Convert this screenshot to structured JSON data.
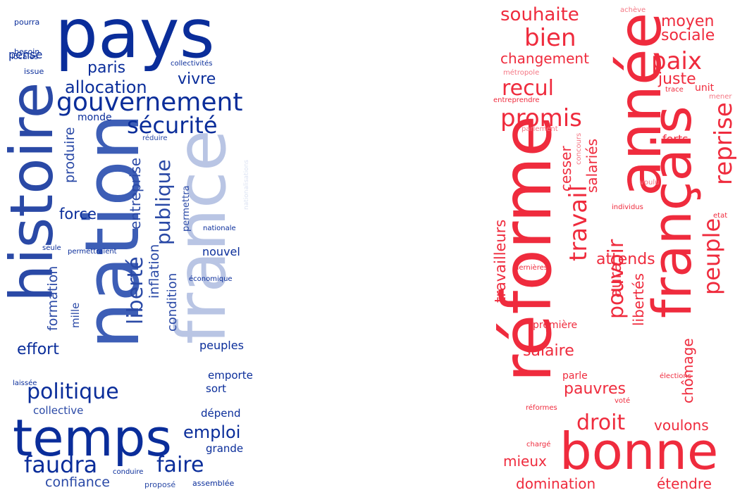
{
  "clouds": [
    {
      "words": [
        {
          "text": "pays",
          "color": "#0a2d9a"
        },
        {
          "text": "histoire",
          "color": "#2a49a6"
        },
        {
          "text": "nation",
          "color": "#3d5eb6"
        },
        {
          "text": "france",
          "color": "#b9c5e4"
        },
        {
          "text": "temps",
          "color": "#0a2d9a"
        },
        {
          "text": "gouvernement",
          "color": "#0a2d9a"
        },
        {
          "text": "sécurité",
          "color": "#0a2d9a"
        },
        {
          "text": "politique",
          "color": "#0a2d9a"
        },
        {
          "text": "faudra",
          "color": "#0a2d9a"
        },
        {
          "text": "faire",
          "color": "#0a2d9a"
        },
        {
          "text": "publique",
          "color": "#2a49a6"
        },
        {
          "text": "liberté",
          "color": "#2a49a6"
        },
        {
          "text": "allocation",
          "color": "#0a2d9a"
        },
        {
          "text": "paris",
          "color": "#0a2d9a"
        },
        {
          "text": "vivre",
          "color": "#0a2d9a"
        },
        {
          "text": "emploi",
          "color": "#0a2d9a"
        },
        {
          "text": "confiance",
          "color": "#2a49a6"
        },
        {
          "text": "effort",
          "color": "#0a2d9a"
        },
        {
          "text": "force",
          "color": "#0a2d9a"
        },
        {
          "text": "entreprise",
          "color": "#2a49a6"
        },
        {
          "text": "produire",
          "color": "#2a49a6"
        },
        {
          "text": "formation",
          "color": "#2a49a6"
        },
        {
          "text": "inflation",
          "color": "#2a49a6"
        },
        {
          "text": "condition",
          "color": "#2a49a6"
        },
        {
          "text": "pense",
          "color": "#0a2d9a"
        },
        {
          "text": "monde",
          "color": "#0a2d9a"
        },
        {
          "text": "nouvel",
          "color": "#0a2d9a"
        },
        {
          "text": "peuples",
          "color": "#0a2d9a"
        },
        {
          "text": "emporte",
          "color": "#0a2d9a"
        },
        {
          "text": "sort",
          "color": "#0a2d9a"
        },
        {
          "text": "dépend",
          "color": "#0a2d9a"
        },
        {
          "text": "grande",
          "color": "#0a2d9a"
        },
        {
          "text": "collective",
          "color": "#2a49a6"
        },
        {
          "text": "mille",
          "color": "#2a49a6"
        },
        {
          "text": "permettra",
          "color": "#2a49a6"
        },
        {
          "text": "pourra",
          "color": "#0a2d9a"
        },
        {
          "text": "besoin",
          "color": "#0a2d9a"
        },
        {
          "text": "locales",
          "color": "#0a2d9a"
        },
        {
          "text": "issue",
          "color": "#0a2d9a"
        },
        {
          "text": "collectivités",
          "color": "#0a2d9a"
        },
        {
          "text": "réduire",
          "color": "#2a49a6"
        },
        {
          "text": "nationale",
          "color": "#0a2d9a"
        },
        {
          "text": "nationalisations",
          "color": "#dbe2f2"
        },
        {
          "text": "seule",
          "color": "#0a2d9a"
        },
        {
          "text": "permettraient",
          "color": "#0a2d9a"
        },
        {
          "text": "économique",
          "color": "#0a2d9a"
        },
        {
          "text": "laissée",
          "color": "#0a2d9a"
        },
        {
          "text": "conduire",
          "color": "#0a2d9a"
        },
        {
          "text": "proposé",
          "color": "#2a49a6"
        },
        {
          "text": "assemblée",
          "color": "#0a2d9a"
        }
      ]
    },
    {
      "words": [
        {
          "text": "année",
          "color": "#ef2b3d"
        },
        {
          "text": "réforme",
          "color": "#ef2b3d"
        },
        {
          "text": "français",
          "color": "#ef2b3d"
        },
        {
          "text": "bonne",
          "color": "#ef2b3d"
        },
        {
          "text": "souhaite",
          "color": "#ef2b3d"
        },
        {
          "text": "bien",
          "color": "#ef2b3d"
        },
        {
          "text": "changement",
          "color": "#ef2b3d"
        },
        {
          "text": "moyen",
          "color": "#ef2b3d"
        },
        {
          "text": "sociale",
          "color": "#ef2b3d"
        },
        {
          "text": "paix",
          "color": "#ef2b3d"
        },
        {
          "text": "juste",
          "color": "#ef2b3d"
        },
        {
          "text": "recul",
          "color": "#ef2b3d"
        },
        {
          "text": "promis",
          "color": "#ef2b3d"
        },
        {
          "text": "reprise",
          "color": "#ef2b3d"
        },
        {
          "text": "peuple",
          "color": "#ef2b3d"
        },
        {
          "text": "forts",
          "color": "#ef2b3d"
        },
        {
          "text": "cesser",
          "color": "#ef2b3d"
        },
        {
          "text": "salariés",
          "color": "#ef2b3d"
        },
        {
          "text": "travail",
          "color": "#ef2b3d"
        },
        {
          "text": "travailleurs",
          "color": "#ef2b3d"
        },
        {
          "text": "pouvoir",
          "color": "#ef2b3d"
        },
        {
          "text": "aura",
          "color": "#ef2b3d"
        },
        {
          "text": "attends",
          "color": "#ef2b3d"
        },
        {
          "text": "libertés",
          "color": "#ef2b3d"
        },
        {
          "text": "chômage",
          "color": "#ef2b3d"
        },
        {
          "text": "salaire",
          "color": "#ef2b3d"
        },
        {
          "text": "pauvres",
          "color": "#ef2b3d"
        },
        {
          "text": "droit",
          "color": "#ef2b3d"
        },
        {
          "text": "voulons",
          "color": "#ef2b3d"
        },
        {
          "text": "mieux",
          "color": "#ef2b3d"
        },
        {
          "text": "domination",
          "color": "#ef2b3d"
        },
        {
          "text": "étendre",
          "color": "#ef2b3d"
        },
        {
          "text": "première",
          "color": "#ef2b3d"
        },
        {
          "text": "parle",
          "color": "#ef2b3d"
        },
        {
          "text": "achève",
          "color": "#f47784"
        },
        {
          "text": "métropole",
          "color": "#f47784"
        },
        {
          "text": "trace",
          "color": "#ef2b3d"
        },
        {
          "text": "unit",
          "color": "#ef2b3d"
        },
        {
          "text": "mener",
          "color": "#f47784"
        },
        {
          "text": "entreprendre",
          "color": "#ef2b3d"
        },
        {
          "text": "parlement",
          "color": "#f47784"
        },
        {
          "text": "concours",
          "color": "#f47784"
        },
        {
          "text": "voulu",
          "color": "#f47784"
        },
        {
          "text": "individus",
          "color": "#ef2b3d"
        },
        {
          "text": "etat",
          "color": "#ef2b3d"
        },
        {
          "text": "dernières",
          "color": "#ef2b3d"
        },
        {
          "text": "élections",
          "color": "#ef2b3d"
        },
        {
          "text": "réformes",
          "color": "#ef2b3d"
        },
        {
          "text": "voté",
          "color": "#ef2b3d"
        },
        {
          "text": "chargé",
          "color": "#ef2b3d"
        }
      ]
    }
  ]
}
